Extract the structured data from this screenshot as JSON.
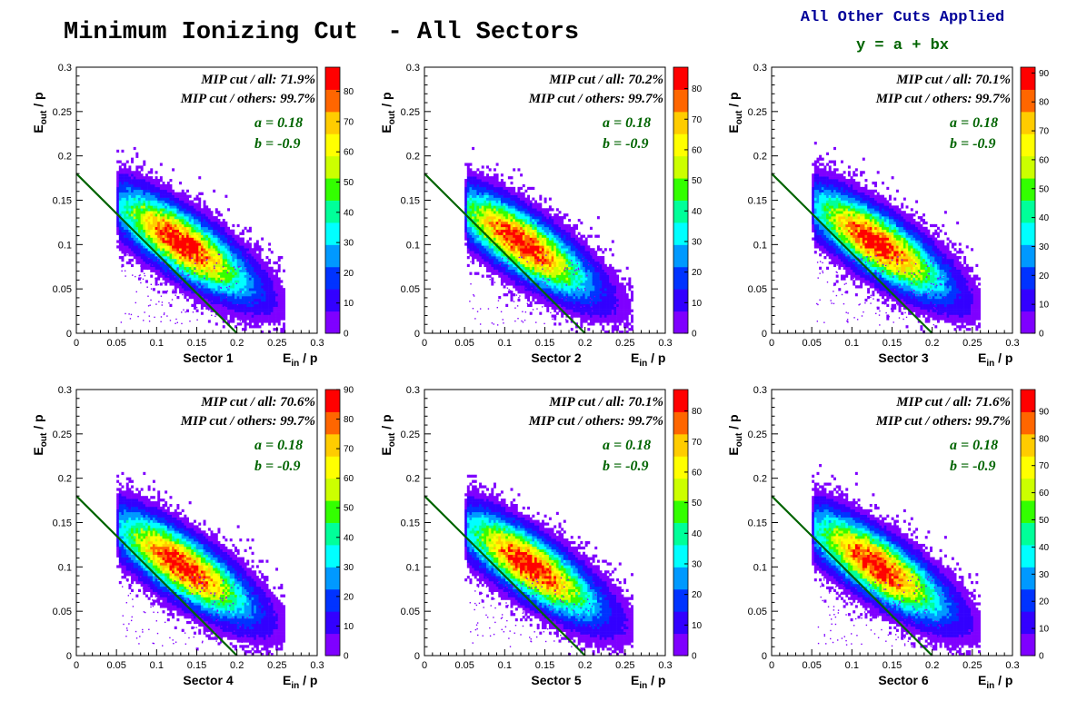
{
  "page": {
    "title": "Minimum Ionizing Cut  - All Sectors",
    "subtitle": "All Other Cuts Applied",
    "equation": "y = a + bx"
  },
  "colors": {
    "title": "#000000",
    "subtitle": "#000099",
    "equation": "#006400",
    "cut_line": "#006400",
    "params": "#006400",
    "palette": [
      "#7f00ff",
      "#3300ff",
      "#0033ff",
      "#0099ff",
      "#00ffff",
      "#00ff99",
      "#33ff00",
      "#ccff00",
      "#ffff00",
      "#ffcc00",
      "#ff6600",
      "#ff0000"
    ]
  },
  "chart_data": [
    {
      "type": "heatmap",
      "xlabel": "Sector 1",
      "xlabel_unit": "E_in / p",
      "ylabel": "E_out / p",
      "xlim": [
        0,
        0.3
      ],
      "ylim": [
        0,
        0.3
      ],
      "xticks": [
        "0",
        "0.05",
        "0.1",
        "0.15",
        "0.2",
        "0.25",
        "0.3"
      ],
      "yticks": [
        "0",
        "0.05",
        "0.1",
        "0.15",
        "0.2",
        "0.25",
        "0.3"
      ],
      "colorbar": {
        "ticks": [
          0,
          10,
          20,
          30,
          40,
          50,
          60,
          70,
          80
        ],
        "max": 88
      },
      "peak": {
        "x": 0.13,
        "y": 0.1
      },
      "cut_line": {
        "a": 0.18,
        "b": -0.9
      },
      "annotations": [
        "MIP cut / all: 71.9%",
        "MIP cut / others: 99.7%",
        "a = 0.18",
        "b = -0.9"
      ]
    },
    {
      "type": "heatmap",
      "xlabel": "Sector 2",
      "xlabel_unit": "E_in / p",
      "ylabel": "E_out / p",
      "xlim": [
        0,
        0.3
      ],
      "ylim": [
        0,
        0.3
      ],
      "xticks": [
        "0",
        "0.05",
        "0.1",
        "0.15",
        "0.2",
        "0.25",
        "0.3"
      ],
      "yticks": [
        "0",
        "0.05",
        "0.1",
        "0.15",
        "0.2",
        "0.25",
        "0.3"
      ],
      "colorbar": {
        "ticks": [
          0,
          10,
          20,
          30,
          40,
          50,
          60,
          70,
          80
        ],
        "max": 87
      },
      "peak": {
        "x": 0.12,
        "y": 0.1
      },
      "cut_line": {
        "a": 0.18,
        "b": -0.9
      },
      "annotations": [
        "MIP cut / all: 70.2%",
        "MIP cut / others: 99.7%",
        "a = 0.18",
        "b = -0.9"
      ]
    },
    {
      "type": "heatmap",
      "xlabel": "Sector 3",
      "xlabel_unit": "E_in / p",
      "ylabel": "E_out / p",
      "xlim": [
        0,
        0.3
      ],
      "ylim": [
        0,
        0.3
      ],
      "xticks": [
        "0",
        "0.05",
        "0.1",
        "0.15",
        "0.2",
        "0.25",
        "0.3"
      ],
      "yticks": [
        "0",
        "0.05",
        "0.1",
        "0.15",
        "0.2",
        "0.25",
        "0.3"
      ],
      "colorbar": {
        "ticks": [
          0,
          10,
          20,
          30,
          40,
          50,
          60,
          70,
          80,
          90
        ],
        "max": 92
      },
      "peak": {
        "x": 0.13,
        "y": 0.1
      },
      "cut_line": {
        "a": 0.18,
        "b": -0.9
      },
      "annotations": [
        "MIP cut / all: 70.1%",
        "MIP cut / others: 99.7%",
        "a = 0.18",
        "b = -0.9"
      ]
    },
    {
      "type": "heatmap",
      "xlabel": "Sector 4",
      "xlabel_unit": "E_in / p",
      "ylabel": "E_out / p",
      "xlim": [
        0,
        0.3
      ],
      "ylim": [
        0,
        0.3
      ],
      "xticks": [
        "0",
        "0.05",
        "0.1",
        "0.15",
        "0.2",
        "0.25",
        "0.3"
      ],
      "yticks": [
        "0",
        "0.05",
        "0.1",
        "0.15",
        "0.2",
        "0.25",
        "0.3"
      ],
      "colorbar": {
        "ticks": [
          0,
          10,
          20,
          30,
          40,
          50,
          60,
          70,
          80,
          90
        ],
        "max": 90
      },
      "peak": {
        "x": 0.13,
        "y": 0.1
      },
      "cut_line": {
        "a": 0.18,
        "b": -0.9
      },
      "annotations": [
        "MIP cut / all: 70.6%",
        "MIP cut / others: 99.7%",
        "a = 0.18",
        "b = -0.9"
      ]
    },
    {
      "type": "heatmap",
      "xlabel": "Sector 5",
      "xlabel_unit": "E_in / p",
      "ylabel": "E_out / p",
      "xlim": [
        0,
        0.3
      ],
      "ylim": [
        0,
        0.3
      ],
      "xticks": [
        "0",
        "0.05",
        "0.1",
        "0.15",
        "0.2",
        "0.25",
        "0.3"
      ],
      "yticks": [
        "0",
        "0.05",
        "0.1",
        "0.15",
        "0.2",
        "0.25",
        "0.3"
      ],
      "colorbar": {
        "ticks": [
          0,
          10,
          20,
          30,
          40,
          50,
          60,
          70,
          80
        ],
        "max": 87
      },
      "peak": {
        "x": 0.13,
        "y": 0.1
      },
      "cut_line": {
        "a": 0.18,
        "b": -0.9
      },
      "annotations": [
        "MIP cut / all: 70.1%",
        "MIP cut / others: 99.7%",
        "a = 0.18",
        "b = -0.9"
      ]
    },
    {
      "type": "heatmap",
      "xlabel": "Sector 6",
      "xlabel_unit": "E_in / p",
      "ylabel": "E_out / p",
      "xlim": [
        0,
        0.3
      ],
      "ylim": [
        0,
        0.3
      ],
      "xticks": [
        "0",
        "0.05",
        "0.1",
        "0.15",
        "0.2",
        "0.25",
        "0.3"
      ],
      "yticks": [
        "0",
        "0.05",
        "0.1",
        "0.15",
        "0.2",
        "0.25",
        "0.3"
      ],
      "colorbar": {
        "ticks": [
          0,
          10,
          20,
          30,
          40,
          50,
          60,
          70,
          80,
          90
        ],
        "max": 98
      },
      "peak": {
        "x": 0.13,
        "y": 0.1
      },
      "cut_line": {
        "a": 0.18,
        "b": -0.9
      },
      "annotations": [
        "MIP cut / all: 71.6%",
        "MIP cut / others: 99.7%",
        "a = 0.18",
        "b = -0.9"
      ]
    }
  ]
}
